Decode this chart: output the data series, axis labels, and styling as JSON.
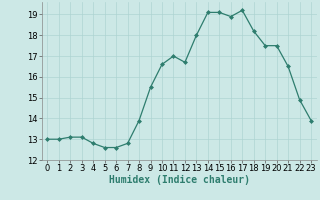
{
  "x": [
    0,
    1,
    2,
    3,
    4,
    5,
    6,
    7,
    8,
    9,
    10,
    11,
    12,
    13,
    14,
    15,
    16,
    17,
    18,
    19,
    20,
    21,
    22,
    23
  ],
  "y": [
    13.0,
    13.0,
    13.1,
    13.1,
    12.8,
    12.6,
    12.6,
    12.8,
    13.9,
    15.5,
    16.6,
    17.0,
    16.7,
    18.0,
    19.1,
    19.1,
    18.9,
    19.2,
    18.2,
    17.5,
    17.5,
    16.5,
    14.9,
    13.9
  ],
  "xlabel": "Humidex (Indice chaleur)",
  "ylim": [
    12,
    19.6
  ],
  "yticks": [
    12,
    13,
    14,
    15,
    16,
    17,
    18,
    19
  ],
  "xticks": [
    0,
    1,
    2,
    3,
    4,
    5,
    6,
    7,
    8,
    9,
    10,
    11,
    12,
    13,
    14,
    15,
    16,
    17,
    18,
    19,
    20,
    21,
    22,
    23
  ],
  "line_color": "#2e7d6e",
  "marker_color": "#2e7d6e",
  "bg_color": "#cce8e6",
  "grid_color": "#aed4d2",
  "label_fontsize": 7,
  "tick_fontsize": 6
}
